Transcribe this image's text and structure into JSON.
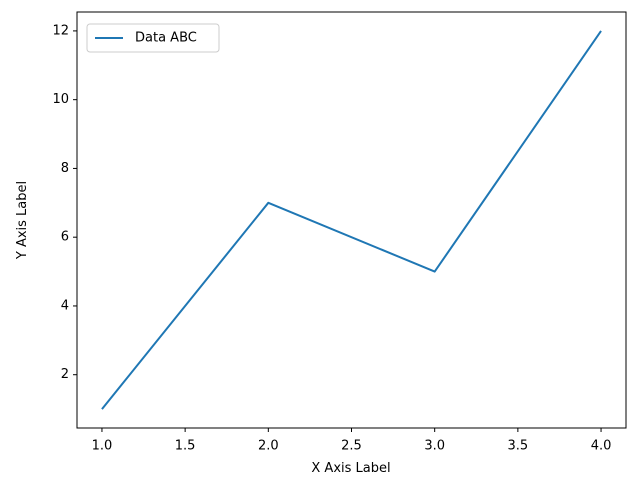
{
  "chart_data": {
    "type": "line",
    "x": [
      1,
      2,
      3,
      4
    ],
    "series": [
      {
        "name": "Data ABC",
        "color": "#1f77b4",
        "values": [
          1,
          7,
          5,
          12
        ]
      }
    ],
    "xlabel": "X Axis Label",
    "ylabel": "Y Axis Label",
    "xlim": [
      0.85,
      4.15
    ],
    "xticks": [
      {
        "value": 1,
        "label": "1.0"
      },
      {
        "value": 1.5,
        "label": "1.5"
      },
      {
        "value": 2,
        "label": "2.0"
      },
      {
        "value": 2.5,
        "label": "2.5"
      },
      {
        "value": 3,
        "label": "3.0"
      },
      {
        "value": 3.5,
        "label": "3.5"
      },
      {
        "value": 4,
        "label": "4.0"
      }
    ],
    "ylim": [
      0.45,
      12.55
    ],
    "yticks": [
      2,
      4,
      6,
      8,
      10,
      12
    ],
    "grid": false,
    "legend": "upper-left"
  }
}
